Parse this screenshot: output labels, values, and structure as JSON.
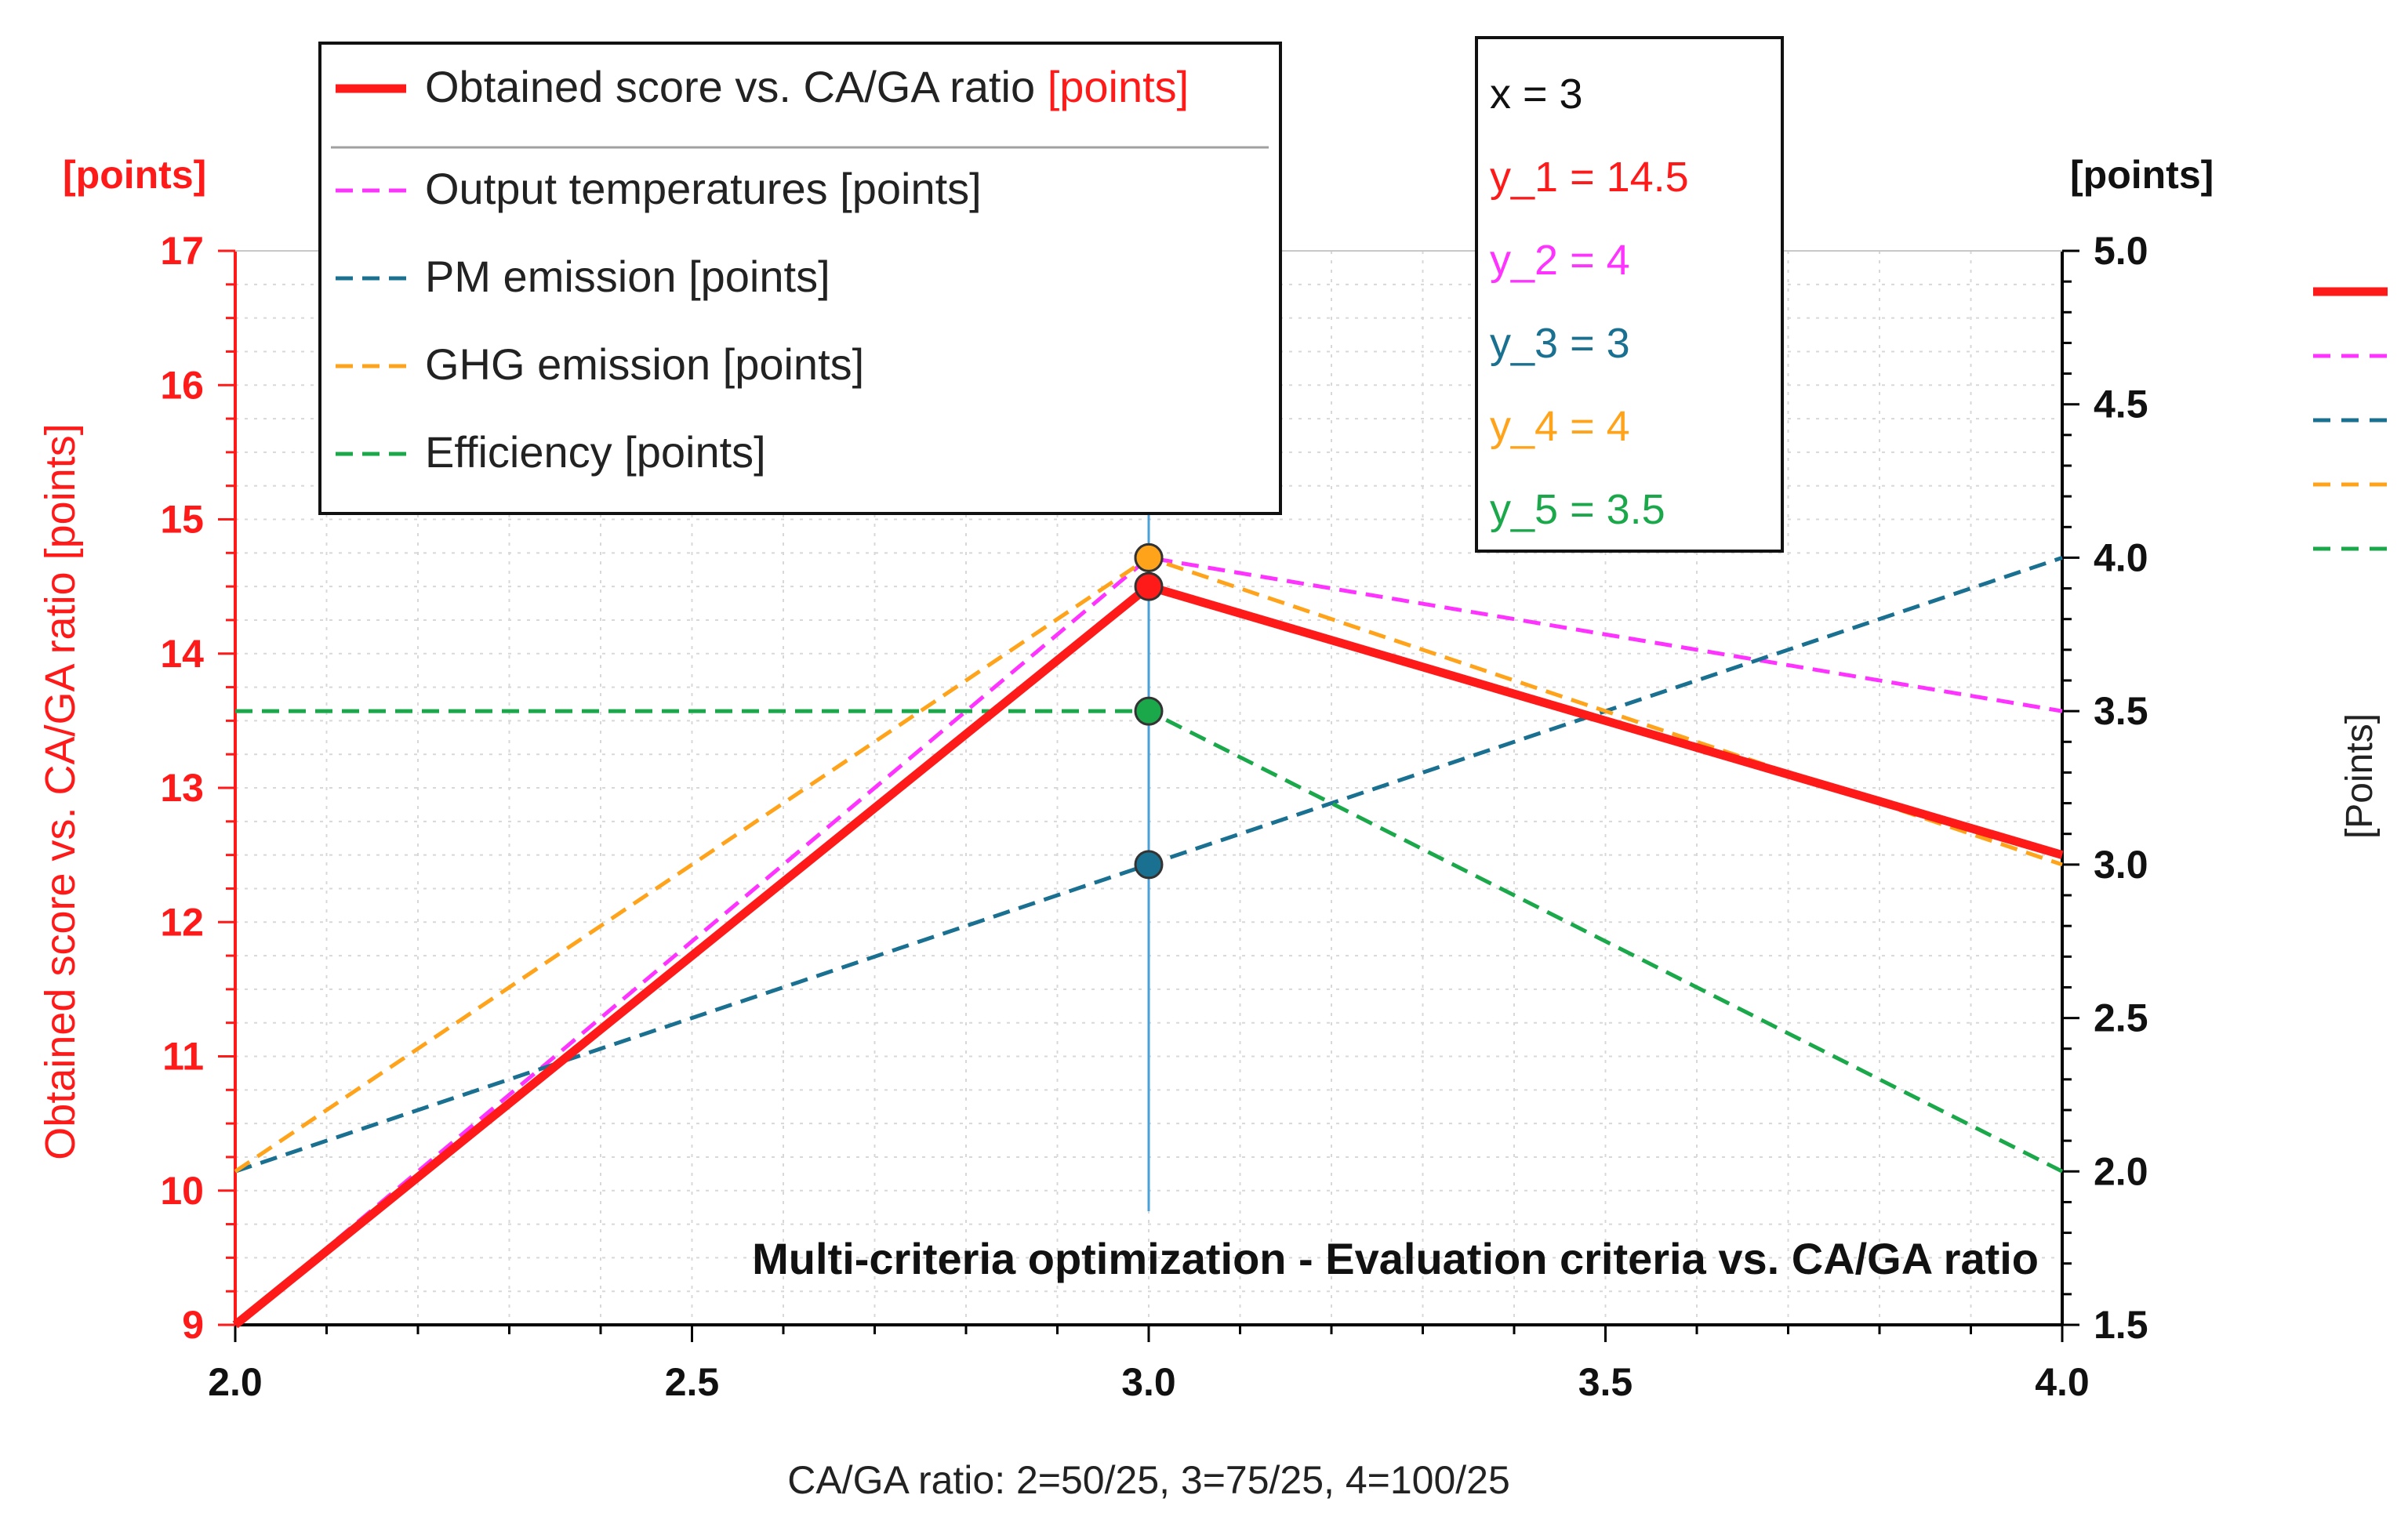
{
  "colors": {
    "score": "#ff1a1a",
    "output_temp": "#ff33ff",
    "pm": "#1a7090",
    "ghg": "#ffa31a",
    "efficiency": "#1aa84a",
    "cursor": "#4aa0d8"
  },
  "chart_data": {
    "type": "line",
    "title": "Multi-criteria optimization - Evaluation criteria vs. CA/GA ratio",
    "xlabel": "CA/GA ratio: 2=50/25, 3=75/25, 4=100/25",
    "ylabel_left": "Obtained score vs. CA/GA ratio [points]",
    "ylabel_left_unit": "[points]",
    "ylabel_right_unit": "[points]",
    "ylabel_right": "[Points]",
    "xlim": [
      2.0,
      4.0
    ],
    "ylim_left": [
      9,
      17
    ],
    "ylim_right": [
      1.5,
      5.0
    ],
    "x_ticks": [
      "2.0",
      "2.5",
      "3.0",
      "3.5",
      "4.0"
    ],
    "y_left_ticks": [
      "9",
      "10",
      "11",
      "12",
      "13",
      "14",
      "15",
      "16",
      "17"
    ],
    "y_right_ticks": [
      "1.5",
      "2.0",
      "2.5",
      "3.0",
      "3.5",
      "4.0",
      "4.5",
      "5.0"
    ],
    "x": [
      2,
      3,
      4
    ],
    "series": [
      {
        "name": "Obtained score vs. CA/GA ratio",
        "unit": "[points]",
        "axis": "left",
        "values": [
          9,
          14.5,
          12.5
        ],
        "style": "solid",
        "color_key": "score"
      },
      {
        "name": "Output temperatures [points]",
        "axis": "right",
        "values": [
          1.5,
          4.0,
          3.5
        ],
        "style": "dashed",
        "color_key": "output_temp"
      },
      {
        "name": "PM emission [points]",
        "axis": "right",
        "values": [
          2.0,
          3.0,
          4.0
        ],
        "style": "dashed",
        "color_key": "pm"
      },
      {
        "name": "GHG emission [points]",
        "axis": "right",
        "values": [
          2.0,
          4.0,
          3.0
        ],
        "style": "dashed",
        "color_key": "ghg"
      },
      {
        "name": "Efficiency [points]",
        "axis": "right",
        "values": [
          3.5,
          3.5,
          2.0
        ],
        "style": "dashed",
        "color_key": "efficiency"
      }
    ],
    "cursor": {
      "x": 3,
      "readout": [
        {
          "label": "x     = 3",
          "color_key": "text"
        },
        {
          "label": "y_1 = 14.5",
          "color_key": "score"
        },
        {
          "label": "y_2 = 4",
          "color_key": "output_temp"
        },
        {
          "label": "y_3 = 3",
          "color_key": "pm"
        },
        {
          "label": "y_4 = 4",
          "color_key": "ghg"
        },
        {
          "label": "y_5 = 3.5",
          "color_key": "efficiency"
        }
      ]
    },
    "legend_position": "top-left"
  }
}
